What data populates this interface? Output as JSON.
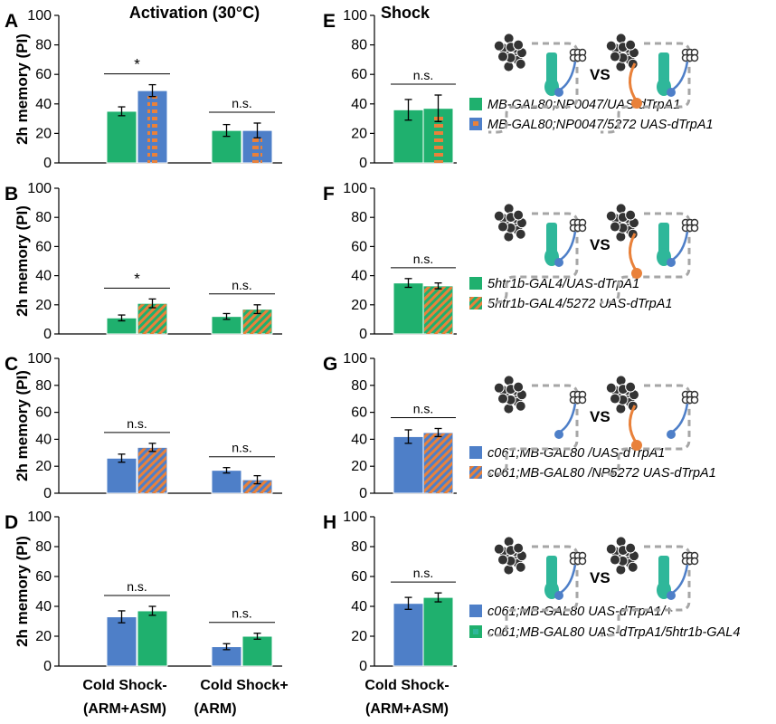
{
  "colors": {
    "green": "#1fb06e",
    "blue": "#4e7fc8",
    "orange": "#e9813a",
    "teal": "#2fb79a",
    "gray": "#a6a6a6"
  },
  "titles": {
    "activation": "Activation (30°C)",
    "shock": "Shock"
  },
  "xlabels": [
    {
      "line1": "Cold Shock-",
      "line2": "(ARM+ASM)"
    },
    {
      "line1": "Cold Shock+",
      "line2": "(ARM)"
    },
    {
      "line1": "Cold Shock-",
      "line2": "(ARM+ASM)"
    }
  ],
  "vs_label": "VS",
  "chart_data": [
    {
      "panel": "A",
      "type": "bar",
      "title": "Activation (30°C)",
      "ylabel": "2h memory (PI)",
      "ylim": [
        0,
        100
      ],
      "yticks": [
        0,
        20,
        40,
        60,
        80,
        100
      ],
      "categories": [
        "Cold Shock- (ARM+ASM)",
        "Cold Shock+ (ARM)"
      ],
      "series": [
        {
          "name": "MB-GAL80;NP0047/UAS-dTrpA1",
          "values": [
            35,
            22
          ],
          "errors": [
            3,
            4
          ],
          "fill": "green",
          "pattern": "none"
        },
        {
          "name": "MB-GAL80;NP0047/5272 UAS-dTrpA1",
          "values": [
            49,
            22
          ],
          "errors": [
            4,
            5
          ],
          "fill": "blue",
          "pattern": "orange-dash"
        }
      ],
      "significance": [
        "*",
        "n.s."
      ]
    },
    {
      "panel": "B",
      "type": "bar",
      "ylabel": "2h memory (PI)",
      "ylim": [
        0,
        100
      ],
      "yticks": [
        0,
        20,
        40,
        60,
        80,
        100
      ],
      "categories": [
        "Cold Shock- (ARM+ASM)",
        "Cold Shock+ (ARM)"
      ],
      "series": [
        {
          "name": "5htr1b-GAL4/UAS-dTrpA1",
          "values": [
            11,
            12
          ],
          "errors": [
            2,
            2
          ],
          "fill": "green",
          "pattern": "none"
        },
        {
          "name": "5htr1b-GAL4/5272 UAS-dTrpA1",
          "values": [
            21,
            17
          ],
          "errors": [
            3,
            3
          ],
          "fill": "green",
          "pattern": "orange-hatch"
        }
      ],
      "significance": [
        "*",
        "n.s."
      ]
    },
    {
      "panel": "C",
      "type": "bar",
      "ylabel": "2h memory (PI)",
      "ylim": [
        0,
        100
      ],
      "yticks": [
        0,
        20,
        40,
        60,
        80,
        100
      ],
      "categories": [
        "Cold Shock- (ARM+ASM)",
        "Cold Shock+ (ARM)"
      ],
      "series": [
        {
          "name": "c061;MB-GAL80 /UAS-dTrpA1",
          "values": [
            26,
            17
          ],
          "errors": [
            3,
            2
          ],
          "fill": "blue",
          "pattern": "none"
        },
        {
          "name": "c061;MB-GAL80 /NP5272 UAS-dTrpA1",
          "values": [
            34,
            10
          ],
          "errors": [
            3,
            3
          ],
          "fill": "blue",
          "pattern": "orange-hatch"
        }
      ],
      "significance": [
        "n.s.",
        "n.s."
      ]
    },
    {
      "panel": "D",
      "type": "bar",
      "ylabel": "2h memory (PI)",
      "ylim": [
        0,
        100
      ],
      "yticks": [
        0,
        20,
        40,
        60,
        80,
        100
      ],
      "categories": [
        "Cold Shock- (ARM+ASM)",
        "Cold Shock+ (ARM)"
      ],
      "series": [
        {
          "name": "c061;MB-GAL80 UAS-dTrpA1/+",
          "values": [
            33,
            13
          ],
          "errors": [
            4,
            2
          ],
          "fill": "blue",
          "pattern": "none"
        },
        {
          "name": "c061;MB-GAL80 UAS-dTrpA1/5htr1b-GAL4",
          "values": [
            37,
            20
          ],
          "errors": [
            3,
            2
          ],
          "fill": "green",
          "pattern": "none"
        }
      ],
      "significance": [
        "n.s.",
        "n.s."
      ]
    },
    {
      "panel": "E",
      "type": "bar",
      "title": "Shock",
      "ylim": [
        0,
        100
      ],
      "yticks": [
        0,
        20,
        40,
        60,
        80,
        100
      ],
      "categories": [
        "Cold Shock- (ARM+ASM)"
      ],
      "series": [
        {
          "name": "MB-GAL80;NP0047/UAS-dTrpA1",
          "values": [
            36
          ],
          "errors": [
            7
          ],
          "fill": "green",
          "pattern": "none"
        },
        {
          "name": "MB-GAL80;NP0047/5272 UAS-dTrpA1",
          "values": [
            37
          ],
          "errors": [
            9
          ],
          "fill": "green",
          "pattern": "orange-dash"
        }
      ],
      "significance": [
        "n.s."
      ]
    },
    {
      "panel": "F",
      "type": "bar",
      "ylim": [
        0,
        100
      ],
      "yticks": [
        0,
        20,
        40,
        60,
        80,
        100
      ],
      "categories": [
        "Cold Shock- (ARM+ASM)"
      ],
      "series": [
        {
          "name": "5htr1b-GAL4/UAS-dTrpA1",
          "values": [
            35
          ],
          "errors": [
            3
          ],
          "fill": "green",
          "pattern": "none"
        },
        {
          "name": "5htr1b-GAL4/5272 UAS-dTrpA1",
          "values": [
            33
          ],
          "errors": [
            2
          ],
          "fill": "green",
          "pattern": "orange-hatch"
        }
      ],
      "significance": [
        "n.s."
      ]
    },
    {
      "panel": "G",
      "type": "bar",
      "ylim": [
        0,
        100
      ],
      "yticks": [
        0,
        20,
        40,
        60,
        80,
        100
      ],
      "categories": [
        "Cold Shock- (ARM+ASM)"
      ],
      "series": [
        {
          "name": "c061;MB-GAL80 /UAS-dTrpA1",
          "values": [
            42
          ],
          "errors": [
            5
          ],
          "fill": "blue",
          "pattern": "none"
        },
        {
          "name": "c061;MB-GAL80 /NP5272 UAS-dTrpA1",
          "values": [
            45
          ],
          "errors": [
            3
          ],
          "fill": "blue",
          "pattern": "orange-hatch"
        }
      ],
      "significance": [
        "n.s."
      ]
    },
    {
      "panel": "H",
      "type": "bar",
      "ylim": [
        0,
        100
      ],
      "yticks": [
        0,
        20,
        40,
        60,
        80,
        100
      ],
      "categories": [
        "Cold Shock- (ARM+ASM)"
      ],
      "series": [
        {
          "name": "c061;MB-GAL80 UAS-dTrpA1/+",
          "values": [
            42
          ],
          "errors": [
            4
          ],
          "fill": "blue",
          "pattern": "none"
        },
        {
          "name": "c061;MB-GAL80 UAS-dTrpA1/5htr1b-GAL4",
          "values": [
            46
          ],
          "errors": [
            3
          ],
          "fill": "green",
          "pattern": "none"
        }
      ],
      "significance": [
        "n.s."
      ]
    }
  ]
}
